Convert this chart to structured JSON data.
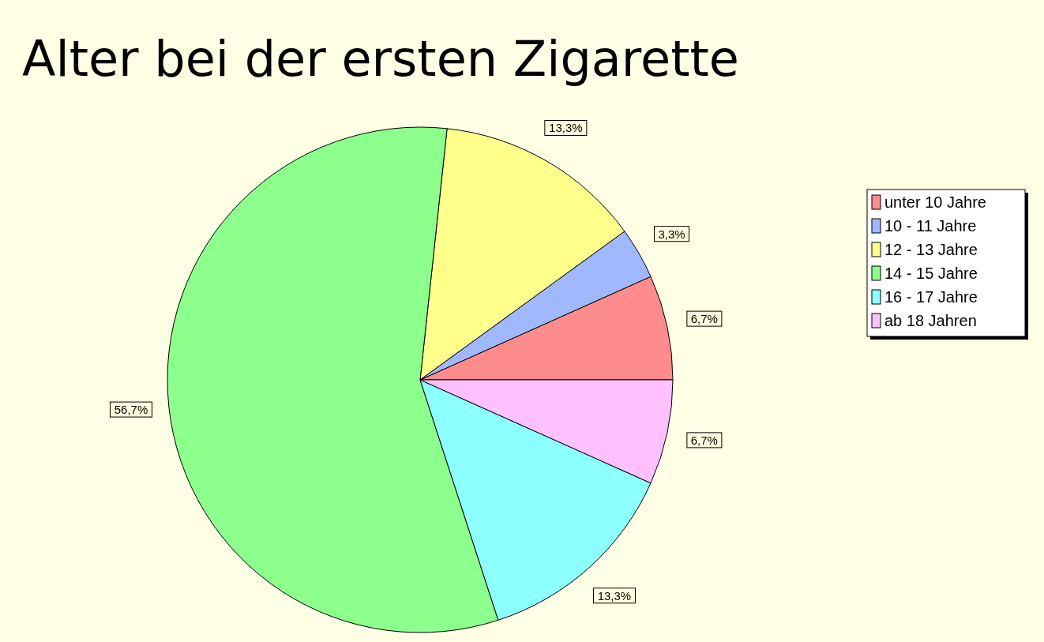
{
  "chart_data": {
    "type": "pie",
    "title": "Alter bei der ersten Zigarette",
    "categories": [
      "unter 10 Jahre",
      "10 - 11 Jahre",
      "12 - 13 Jahre",
      "14 - 15 Jahre",
      "16 - 17 Jahre",
      "ab 18 Jahren"
    ],
    "values": [
      6.7,
      3.3,
      13.3,
      56.7,
      13.3,
      6.7
    ],
    "colors": [
      "#ff8c8c",
      "#a0b8ff",
      "#ffff8c",
      "#8cff8c",
      "#8cffff",
      "#ffc0ff"
    ],
    "value_labels": [
      "6,7%",
      "3,3%",
      "13,3%",
      "56,7%",
      "13,3%",
      "6,7%"
    ],
    "legend": "right"
  }
}
